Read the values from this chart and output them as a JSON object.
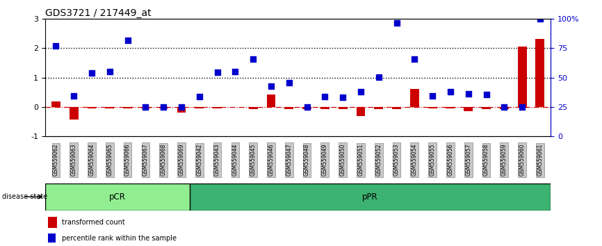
{
  "title": "GDS3721 / 217449_at",
  "samples": [
    "GSM559062",
    "GSM559063",
    "GSM559064",
    "GSM559065",
    "GSM559066",
    "GSM559067",
    "GSM559068",
    "GSM559069",
    "GSM559042",
    "GSM559043",
    "GSM559044",
    "GSM559045",
    "GSM559046",
    "GSM559047",
    "GSM559048",
    "GSM559049",
    "GSM559050",
    "GSM559051",
    "GSM559052",
    "GSM559053",
    "GSM559054",
    "GSM559055",
    "GSM559056",
    "GSM559057",
    "GSM559058",
    "GSM559059",
    "GSM559060",
    "GSM559061"
  ],
  "transformed_count": [
    0.18,
    -0.42,
    -0.05,
    -0.05,
    -0.05,
    -0.05,
    -0.05,
    -0.18,
    -0.05,
    -0.05,
    0.0,
    -0.08,
    0.42,
    -0.08,
    -0.08,
    -0.08,
    -0.08,
    -0.3,
    -0.08,
    -0.08,
    0.62,
    -0.05,
    -0.05,
    -0.15,
    -0.08,
    -0.08,
    2.05,
    2.3
  ],
  "percentile_rank": [
    2.08,
    0.38,
    1.15,
    1.2,
    2.25,
    0.0,
    0.0,
    0.0,
    0.35,
    1.18,
    1.2,
    1.62,
    0.7,
    0.82,
    0.0,
    0.35,
    0.32,
    0.52,
    1.02,
    2.85,
    1.62,
    0.38,
    0.52,
    0.45,
    0.42,
    0.0,
    0.0,
    3.0
  ],
  "pCR_count": 8,
  "pPR_count": 20,
  "bar_color": "#cc0000",
  "dot_color": "#0000cc",
  "ylim": [
    -1,
    3
  ],
  "dotted_lines": [
    1.0,
    2.0
  ],
  "right_ticks_left": [
    -1.0,
    0.0,
    1.0,
    2.0,
    3.0
  ],
  "right_tick_labels": [
    "0",
    "25",
    "50",
    "75",
    "100%"
  ],
  "left_ticks": [
    -1,
    0,
    1,
    2,
    3
  ],
  "pCR_color": "#90ee90",
  "pPR_color": "#3cb371",
  "disease_state_label": "disease state",
  "legend_bar_label": "transformed count",
  "legend_dot_label": "percentile rank within the sample",
  "background_color": "#ffffff",
  "tick_label_bg": "#c8c8c8"
}
